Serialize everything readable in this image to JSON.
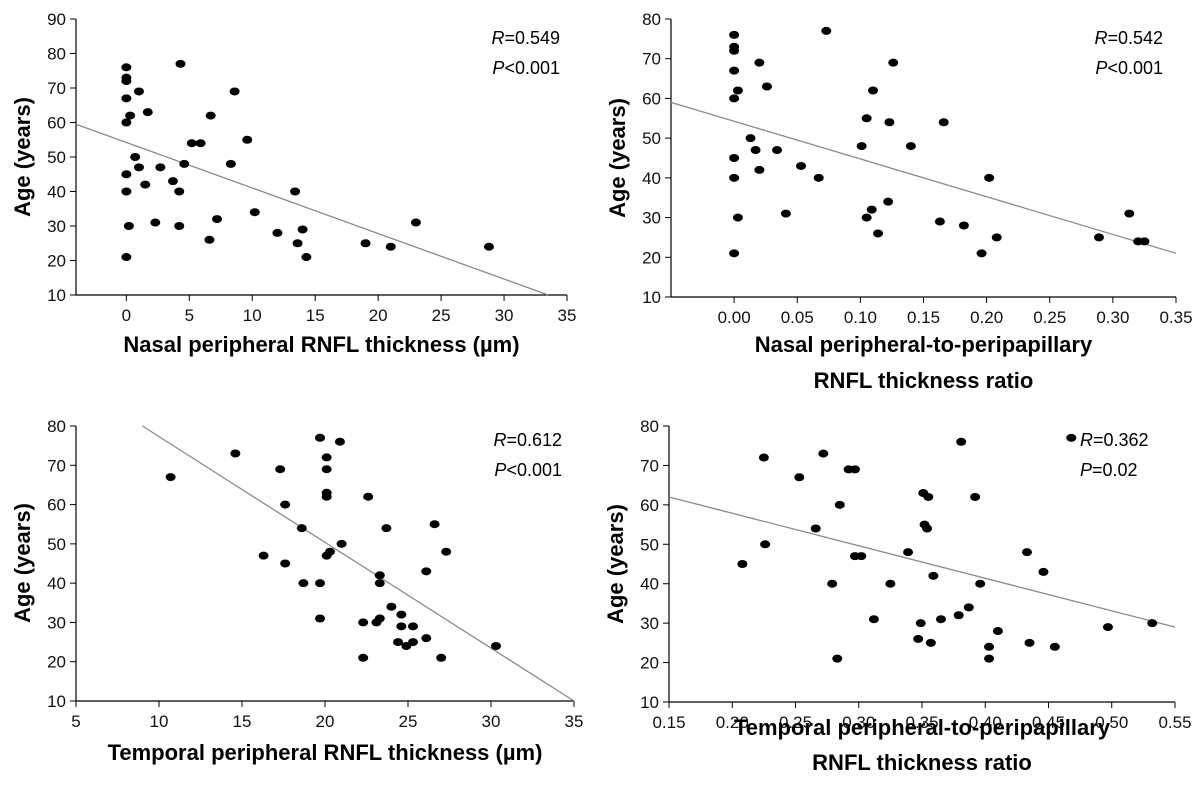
{
  "chart_data": [
    {
      "type": "scatter",
      "xlabel": [
        "Nasal peripheral RNFL thickness (µm)"
      ],
      "ylabel": "Age (years)",
      "xlim": [
        -4,
        35
      ],
      "ylim": [
        10,
        90
      ],
      "xticks": [
        0,
        5,
        10,
        15,
        20,
        25,
        30,
        35
      ],
      "xtick_labels": [
        "0",
        "5",
        "10",
        "15",
        "20",
        "25",
        "30",
        "35"
      ],
      "yticks": [
        10,
        20,
        30,
        40,
        50,
        60,
        70,
        80,
        90
      ],
      "ytick_labels": [
        "10",
        "20",
        "30",
        "40",
        "50",
        "60",
        "70",
        "80",
        "90"
      ],
      "stats": {
        "r_symbol": "R",
        "r_text": "=0.549",
        "p_symbol": "P",
        "p_text": "<0.001"
      },
      "trendline": {
        "x0": -4,
        "y0": 59.5,
        "x1": 33.5,
        "y1": 10
      },
      "points": [
        [
          0,
          76
        ],
        [
          0,
          73
        ],
        [
          0,
          72
        ],
        [
          0,
          67
        ],
        [
          0,
          60
        ],
        [
          0,
          45
        ],
        [
          0,
          40
        ],
        [
          0,
          21
        ],
        [
          0.3,
          62
        ],
        [
          0.2,
          30
        ],
        [
          0.7,
          50
        ],
        [
          1,
          69
        ],
        [
          1,
          47
        ],
        [
          1.5,
          42
        ],
        [
          1.7,
          63
        ],
        [
          2.3,
          31
        ],
        [
          2.7,
          47
        ],
        [
          3.7,
          43
        ],
        [
          4.3,
          77
        ],
        [
          4.2,
          40
        ],
        [
          4.2,
          30
        ],
        [
          4.6,
          48
        ],
        [
          5.2,
          54
        ],
        [
          5.9,
          54
        ],
        [
          6.7,
          62
        ],
        [
          6.6,
          26
        ],
        [
          7.2,
          32
        ],
        [
          8.3,
          48
        ],
        [
          8.6,
          69
        ],
        [
          9.6,
          55
        ],
        [
          10.2,
          34
        ],
        [
          12,
          28
        ],
        [
          13.4,
          40
        ],
        [
          13.6,
          25
        ],
        [
          14,
          29
        ],
        [
          14.3,
          21
        ],
        [
          19,
          25
        ],
        [
          21,
          24
        ],
        [
          23,
          31
        ],
        [
          28.8,
          24
        ]
      ]
    },
    {
      "type": "scatter",
      "xlabel": [
        "Nasal peripheral-to-peripapillary",
        "RNFL thickness ratio"
      ],
      "ylabel": "Age (years)",
      "xlim": [
        -0.05,
        0.35
      ],
      "ylim": [
        10,
        80
      ],
      "xticks": [
        0,
        0.05,
        0.1,
        0.15,
        0.2,
        0.25,
        0.3,
        0.35
      ],
      "xtick_labels": [
        "0.00",
        "0.05",
        "0.10",
        "0.15",
        "0.20",
        "0.25",
        "0.30",
        "0.35"
      ],
      "yticks": [
        10,
        20,
        30,
        40,
        50,
        60,
        70,
        80
      ],
      "ytick_labels": [
        "10",
        "20",
        "30",
        "40",
        "50",
        "60",
        "70",
        "80"
      ],
      "stats": {
        "r_symbol": "R",
        "r_text": "=0.542",
        "p_symbol": "P",
        "p_text": "<0.001"
      },
      "trendline": {
        "x0": -0.05,
        "y0": 59,
        "x1": 0.35,
        "y1": 21
      },
      "points": [
        [
          0,
          76
        ],
        [
          0,
          73
        ],
        [
          0,
          72
        ],
        [
          0,
          67
        ],
        [
          0,
          60
        ],
        [
          0,
          45
        ],
        [
          0,
          40
        ],
        [
          0,
          21
        ],
        [
          0.003,
          62
        ],
        [
          0.003,
          30
        ],
        [
          0.013,
          50
        ],
        [
          0.017,
          47
        ],
        [
          0.02,
          69
        ],
        [
          0.02,
          42
        ],
        [
          0.026,
          63
        ],
        [
          0.034,
          47
        ],
        [
          0.041,
          31
        ],
        [
          0.053,
          43
        ],
        [
          0.067,
          40
        ],
        [
          0.073,
          77
        ],
        [
          0.101,
          48
        ],
        [
          0.105,
          55
        ],
        [
          0.105,
          30
        ],
        [
          0.109,
          32
        ],
        [
          0.11,
          62
        ],
        [
          0.114,
          26
        ],
        [
          0.122,
          34
        ],
        [
          0.123,
          54
        ],
        [
          0.126,
          69
        ],
        [
          0.14,
          48
        ],
        [
          0.163,
          29
        ],
        [
          0.166,
          54
        ],
        [
          0.182,
          28
        ],
        [
          0.196,
          21
        ],
        [
          0.202,
          40
        ],
        [
          0.208,
          25
        ],
        [
          0.289,
          25
        ],
        [
          0.313,
          31
        ],
        [
          0.32,
          24
        ],
        [
          0.325,
          24
        ]
      ]
    },
    {
      "type": "scatter",
      "xlabel": [
        "Temporal peripheral RNFL thickness (µm)"
      ],
      "ylabel": "Age (years)",
      "xlim": [
        5,
        35
      ],
      "ylim": [
        10,
        80
      ],
      "xticks": [
        5,
        10,
        15,
        20,
        25,
        30,
        35
      ],
      "xtick_labels": [
        "5",
        "10",
        "15",
        "20",
        "25",
        "30",
        "35"
      ],
      "yticks": [
        10,
        20,
        30,
        40,
        50,
        60,
        70,
        80
      ],
      "ytick_labels": [
        "10",
        "20",
        "30",
        "40",
        "50",
        "60",
        "70",
        "80"
      ],
      "stats": {
        "r_symbol": "R",
        "r_text": "=0.612",
        "p_symbol": "P",
        "p_text": "<0.001"
      },
      "trendline": {
        "x0": 9,
        "y0": 80,
        "x1": 35,
        "y1": 10
      },
      "points": [
        [
          10.7,
          67
        ],
        [
          14.6,
          73
        ],
        [
          16.3,
          47
        ],
        [
          17.3,
          69
        ],
        [
          17.6,
          60
        ],
        [
          17.6,
          45
        ],
        [
          18.6,
          54
        ],
        [
          18.7,
          40
        ],
        [
          19.7,
          77
        ],
        [
          19.7,
          40
        ],
        [
          19.7,
          31
        ],
        [
          20.1,
          72
        ],
        [
          20.1,
          69
        ],
        [
          20.1,
          63
        ],
        [
          20.1,
          62
        ],
        [
          20.1,
          47
        ],
        [
          20.3,
          48
        ],
        [
          20.9,
          76
        ],
        [
          21,
          50
        ],
        [
          22.3,
          30
        ],
        [
          22.3,
          21
        ],
        [
          22.6,
          62
        ],
        [
          23.1,
          30
        ],
        [
          23.3,
          31
        ],
        [
          23.3,
          42
        ],
        [
          23.3,
          40
        ],
        [
          23.7,
          54
        ],
        [
          24,
          34
        ],
        [
          24.4,
          25
        ],
        [
          24.6,
          32
        ],
        [
          24.6,
          29
        ],
        [
          24.9,
          24
        ],
        [
          25.3,
          29
        ],
        [
          25.3,
          25
        ],
        [
          26.1,
          26
        ],
        [
          26.1,
          43
        ],
        [
          26.6,
          55
        ],
        [
          27,
          21
        ],
        [
          27.3,
          48
        ],
        [
          30.3,
          24
        ]
      ]
    },
    {
      "type": "scatter",
      "xlabel": [
        "Temporal peripheral-to-peripapillary",
        "RNFL thickness ratio"
      ],
      "ylabel": "Age (years)",
      "xlim": [
        0.15,
        0.55
      ],
      "ylim": [
        10,
        80
      ],
      "xticks": [
        0.15,
        0.2,
        0.25,
        0.3,
        0.35,
        0.4,
        0.45,
        0.5,
        0.55
      ],
      "xtick_labels": [
        "0.15",
        "0.20",
        "0.25",
        "0.30",
        "0.35",
        "0.40",
        "0.45",
        "0.50",
        "0.55"
      ],
      "yticks": [
        10,
        20,
        30,
        40,
        50,
        60,
        70,
        80
      ],
      "ytick_labels": [
        "10",
        "20",
        "30",
        "40",
        "50",
        "60",
        "70",
        "80"
      ],
      "stats": {
        "r_symbol": "R",
        "r_text": "=0.362",
        "p_symbol": "P",
        "p_text": "=0.02"
      },
      "trendline": {
        "x0": 0.15,
        "y0": 62,
        "x1": 0.55,
        "y1": 29
      },
      "points": [
        [
          0.208,
          45
        ],
        [
          0.225,
          72
        ],
        [
          0.226,
          50
        ],
        [
          0.253,
          67
        ],
        [
          0.266,
          54
        ],
        [
          0.272,
          73
        ],
        [
          0.279,
          40
        ],
        [
          0.283,
          21
        ],
        [
          0.285,
          60
        ],
        [
          0.292,
          69
        ],
        [
          0.297,
          69
        ],
        [
          0.297,
          47
        ],
        [
          0.302,
          47
        ],
        [
          0.312,
          31
        ],
        [
          0.325,
          40
        ],
        [
          0.339,
          48
        ],
        [
          0.347,
          26
        ],
        [
          0.349,
          30
        ],
        [
          0.351,
          63
        ],
        [
          0.352,
          55
        ],
        [
          0.354,
          54
        ],
        [
          0.355,
          62
        ],
        [
          0.357,
          25
        ],
        [
          0.359,
          42
        ],
        [
          0.365,
          31
        ],
        [
          0.379,
          32
        ],
        [
          0.381,
          76
        ],
        [
          0.387,
          34
        ],
        [
          0.392,
          62
        ],
        [
          0.396,
          40
        ],
        [
          0.403,
          24
        ],
        [
          0.403,
          21
        ],
        [
          0.41,
          28
        ],
        [
          0.433,
          48
        ],
        [
          0.435,
          25
        ],
        [
          0.446,
          43
        ],
        [
          0.455,
          24
        ],
        [
          0.468,
          77
        ],
        [
          0.497,
          29
        ],
        [
          0.532,
          30
        ]
      ]
    }
  ]
}
